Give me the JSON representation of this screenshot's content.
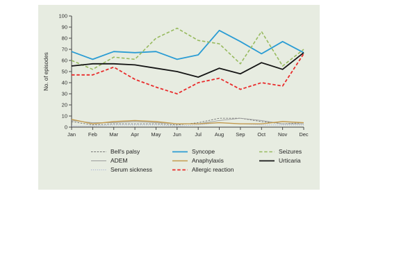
{
  "figure": {
    "canvas_background": "#ffffff",
    "panel_background": "#e7ece1",
    "axis_color": "#3d3d3d",
    "text_color": "#2b2b2b"
  },
  "chart_data": {
    "type": "line",
    "title": "",
    "xlabel": "",
    "ylabel": "No. of episodes",
    "x_categories": [
      "Jan",
      "Feb",
      "Mar",
      "Apr",
      "May",
      "Jun",
      "Jul",
      "Aug",
      "Sep",
      "Oct",
      "Nov",
      "Dec"
    ],
    "ylim": [
      0,
      100
    ],
    "yticks": [
      0,
      10,
      20,
      30,
      40,
      50,
      60,
      70,
      80,
      90,
      100
    ],
    "grid": false,
    "legend_position": "bottom",
    "series": [
      {
        "name": "Bell's palsy",
        "color": "#6f6f6f",
        "style": "fine-dashed",
        "width": 0.9,
        "values": [
          5,
          2,
          3,
          3,
          3,
          2,
          4,
          8,
          8,
          5,
          3,
          4
        ]
      },
      {
        "name": "ADEM",
        "color": "#9b9b9b",
        "style": "solid",
        "width": 0.9,
        "values": [
          6,
          4,
          4,
          5,
          4,
          3,
          3,
          6,
          8,
          6,
          3,
          3
        ]
      },
      {
        "name": "Serum sickness",
        "color": "#9ea8d6",
        "style": "dotted",
        "width": 1.1,
        "values": [
          1,
          1,
          2,
          2,
          2,
          1,
          2,
          4,
          3,
          2,
          2,
          2
        ]
      },
      {
        "name": "Syncope",
        "color": "#2a9cd4",
        "style": "solid",
        "width": 1.8,
        "values": [
          68,
          61,
          68,
          67,
          68,
          61,
          65,
          87,
          77,
          66,
          77,
          67
        ]
      },
      {
        "name": "Anaphylaxis",
        "color": "#c39a4d",
        "style": "solid",
        "width": 1.4,
        "values": [
          7,
          3,
          5,
          6,
          5,
          3,
          3,
          4,
          3,
          3,
          5,
          4
        ]
      },
      {
        "name": "Allergic reaction",
        "color": "#e92b2b",
        "style": "dashed",
        "width": 1.8,
        "values": [
          47,
          47,
          54,
          43,
          36,
          30,
          40,
          44,
          34,
          40,
          37,
          66
        ]
      },
      {
        "name": "Seizures",
        "color": "#97ba5e",
        "style": "dashed",
        "width": 1.6,
        "values": [
          60,
          52,
          63,
          61,
          80,
          89,
          78,
          75,
          57,
          86,
          55,
          70
        ]
      },
      {
        "name": "Urticaria",
        "color": "#141414",
        "style": "solid",
        "width": 1.8,
        "values": [
          55,
          57,
          57,
          56,
          53,
          50,
          45,
          53,
          48,
          58,
          52,
          67
        ]
      }
    ],
    "legend_columns": [
      [
        "Bell's palsy",
        "ADEM",
        "Serum sickness"
      ],
      [
        "Syncope",
        "Anaphylaxis",
        "Allergic reaction"
      ],
      [
        "Seizures",
        "Urticaria"
      ]
    ]
  }
}
